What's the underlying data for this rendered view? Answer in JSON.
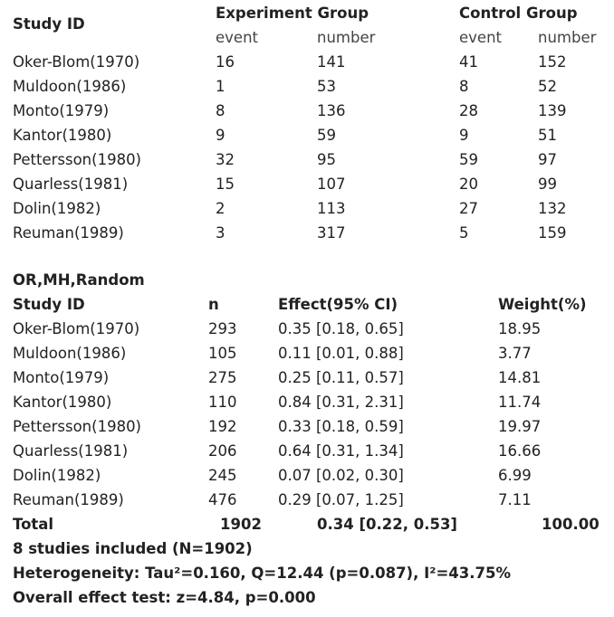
{
  "table1": {
    "study_id_header": "Study ID",
    "experiment_header": "Experiment Group",
    "control_header": "Control Group",
    "event_label": "event",
    "number_label": "number",
    "rows": [
      {
        "study": "Oker-Blom(1970)",
        "exp_event": "16",
        "exp_number": "141",
        "ctrl_event": "41",
        "ctrl_number": "152"
      },
      {
        "study": "Muldoon(1986)",
        "exp_event": "1",
        "exp_number": "53",
        "ctrl_event": "8",
        "ctrl_number": "52"
      },
      {
        "study": "Monto(1979)",
        "exp_event": "8",
        "exp_number": "136",
        "ctrl_event": "28",
        "ctrl_number": "139"
      },
      {
        "study": "Kantor(1980)",
        "exp_event": "9",
        "exp_number": "59",
        "ctrl_event": "9",
        "ctrl_number": "51"
      },
      {
        "study": "Pettersson(1980)",
        "exp_event": "32",
        "exp_number": "95",
        "ctrl_event": "59",
        "ctrl_number": "97"
      },
      {
        "study": "Quarless(1981)",
        "exp_event": "15",
        "exp_number": "107",
        "ctrl_event": "20",
        "ctrl_number": "99"
      },
      {
        "study": "Dolin(1982)",
        "exp_event": "2",
        "exp_number": "113",
        "ctrl_event": "27",
        "ctrl_number": "132"
      },
      {
        "study": "Reuman(1989)",
        "exp_event": "3",
        "exp_number": "317",
        "ctrl_event": "5",
        "ctrl_number": "159"
      }
    ]
  },
  "table2": {
    "method_title": "OR,MH,Random",
    "study_id_header": "Study ID",
    "n_header": "n",
    "effect_header": "Effect(95% CI)",
    "weight_header": "Weight(%)",
    "rows": [
      {
        "study": "Oker-Blom(1970)",
        "n": "293",
        "effect": "0.35 [0.18, 0.65]",
        "weight": "18.95"
      },
      {
        "study": "Muldoon(1986)",
        "n": "105",
        "effect": "0.11 [0.01, 0.88]",
        "weight": "3.77"
      },
      {
        "study": "Monto(1979)",
        "n": "275",
        "effect": "0.25 [0.11, 0.57]",
        "weight": "14.81"
      },
      {
        "study": "Kantor(1980)",
        "n": "110",
        "effect": "0.84 [0.31, 2.31]",
        "weight": "11.74"
      },
      {
        "study": "Pettersson(1980)",
        "n": "192",
        "effect": "0.33 [0.18, 0.59]",
        "weight": "19.97"
      },
      {
        "study": "Quarless(1981)",
        "n": "206",
        "effect": "0.64 [0.31, 1.34]",
        "weight": "16.66"
      },
      {
        "study": "Dolin(1982)",
        "n": "245",
        "effect": "0.07 [0.02, 0.30]",
        "weight": "6.99"
      },
      {
        "study": "Reuman(1989)",
        "n": "476",
        "effect": "0.29 [0.07, 1.25]",
        "weight": "7.11"
      }
    ],
    "total": {
      "label": "Total",
      "n": "1902",
      "effect": "0.34 [0.22, 0.53]",
      "weight": "100.00"
    }
  },
  "summary": {
    "studies_included": "8 studies included (N=1902)",
    "heterogeneity": "Heterogeneity: Tau²=0.160, Q=12.44 (p=0.087), I²=43.75%",
    "overall_effect": "Overall effect test: z=4.84, p=0.000"
  }
}
